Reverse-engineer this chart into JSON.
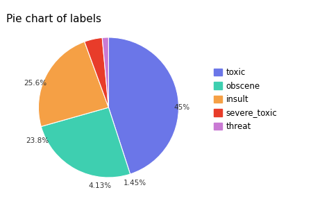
{
  "title": "Pie chart of labels",
  "labels": [
    "toxic",
    "obscene",
    "insult",
    "severe_toxic",
    "threat"
  ],
  "percentages": [
    45.0,
    25.6,
    23.8,
    4.13,
    1.45
  ],
  "colors": [
    "#6b76e8",
    "#3ecfb0",
    "#f5a045",
    "#e83c2a",
    "#c97ad4"
  ],
  "startangle": 90,
  "title_fontsize": 11,
  "legend_fontsize": 8.5
}
